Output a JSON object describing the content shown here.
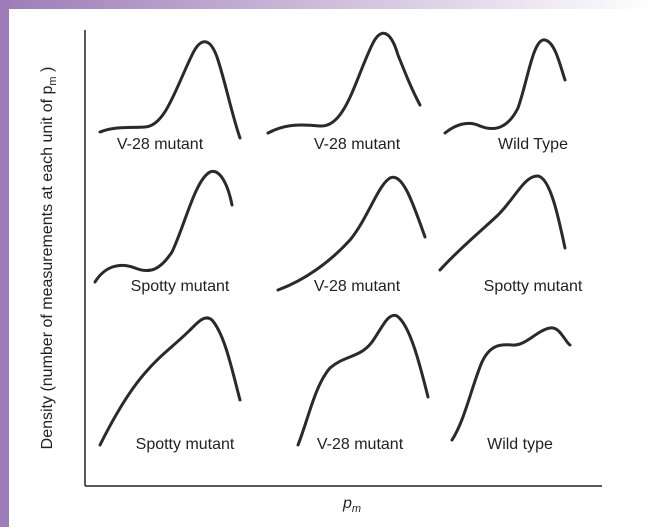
{
  "figure": {
    "y_label": {
      "text": "Density (number of measurements at each unit of p",
      "subscript": "m",
      "end": " )"
    },
    "x_label": {
      "text": "p",
      "subscript": "m"
    },
    "panels": [
      [
        "V-28 mutant",
        "V-28 mutant",
        "Wild Type"
      ],
      [
        "Spotty mutant",
        "V-28 mutant",
        "Spotty mutant"
      ],
      [
        "Spotty mutant",
        "V-28 mutant",
        "Wild type"
      ]
    ]
  }
}
